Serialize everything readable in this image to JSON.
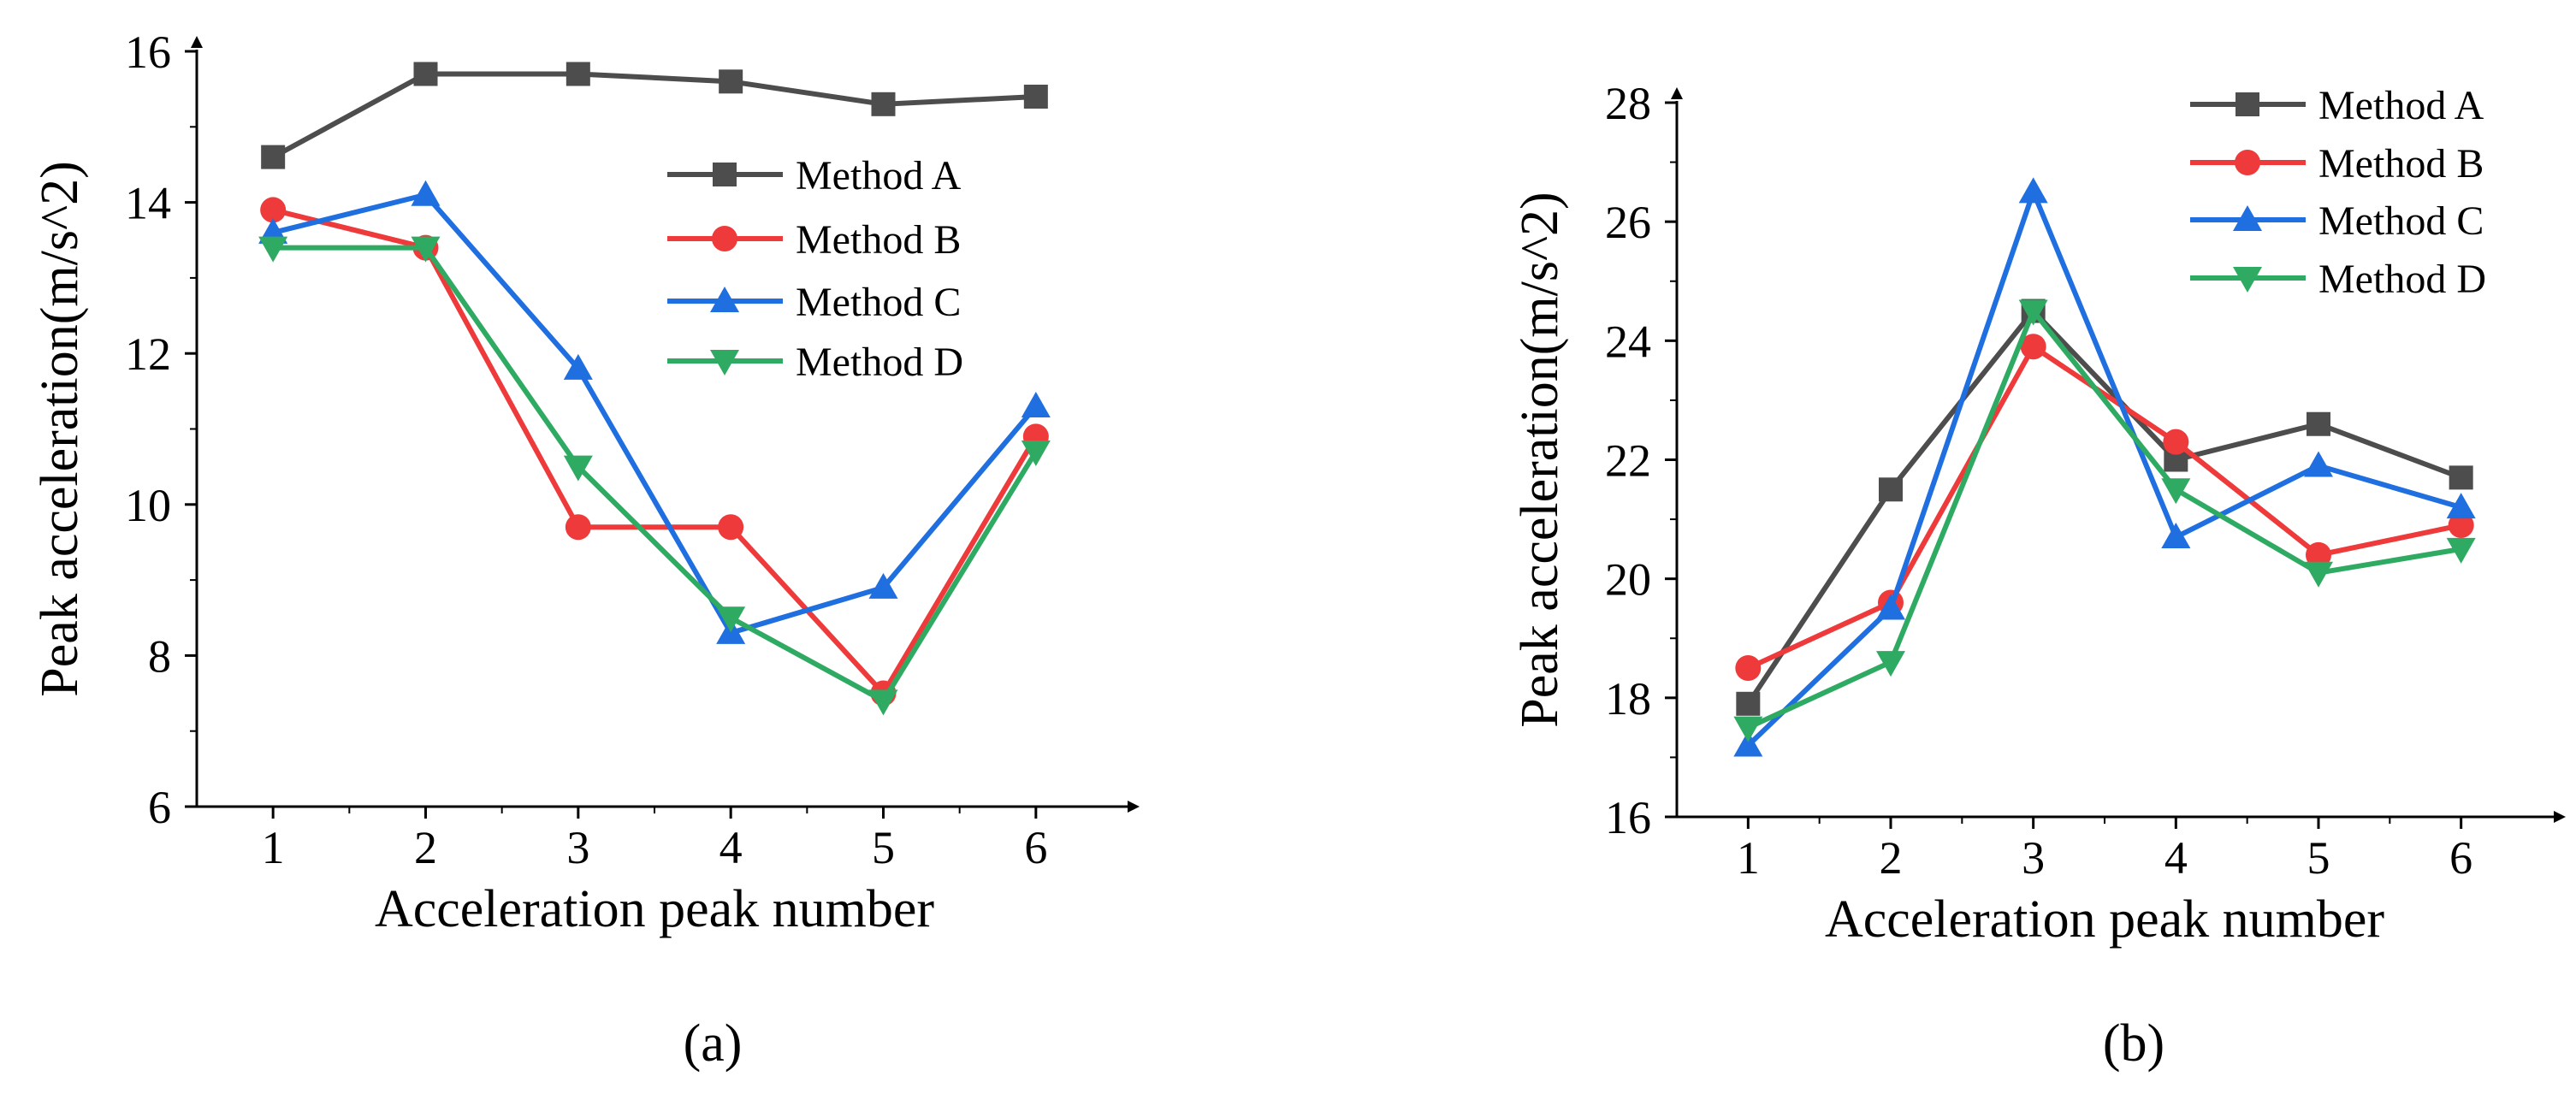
{
  "figure": {
    "panel_a_caption": "(a)",
    "panel_b_caption": "(b)"
  },
  "colors": {
    "Method A": "#4d4d4d",
    "Method B": "#ee3a3a",
    "Method C": "#1f6fe0",
    "Method D": "#2faa62",
    "axis": "#000000"
  },
  "chart_data": [
    {
      "type": "line",
      "panel": "a",
      "title": "",
      "xlabel": "Acceleration peak number",
      "ylabel": "Peak acceleration(m/s^2)",
      "x": [
        1,
        2,
        3,
        4,
        5,
        6
      ],
      "xlim": [
        0.5,
        6.5
      ],
      "ylim": [
        6,
        16
      ],
      "xticks": [
        1,
        2,
        3,
        4,
        5,
        6
      ],
      "yticks": [
        6,
        8,
        10,
        12,
        14,
        16
      ],
      "grid": false,
      "legend_position": "top-right",
      "series": [
        {
          "name": "Method A",
          "marker": "square",
          "values": [
            14.6,
            15.7,
            15.7,
            15.6,
            15.3,
            15.4
          ]
        },
        {
          "name": "Method B",
          "marker": "circle",
          "values": [
            13.9,
            13.4,
            9.7,
            9.7,
            7.5,
            10.9
          ]
        },
        {
          "name": "Method C",
          "marker": "triangle-up",
          "values": [
            13.6,
            14.1,
            11.8,
            8.3,
            8.9,
            11.3
          ]
        },
        {
          "name": "Method D",
          "marker": "triangle-down",
          "values": [
            13.4,
            13.4,
            10.5,
            8.5,
            7.4,
            10.7
          ]
        }
      ]
    },
    {
      "type": "line",
      "panel": "b",
      "title": "",
      "xlabel": "Acceleration peak number",
      "ylabel": "Peak acceleration(m/s^2)",
      "x": [
        1,
        2,
        3,
        4,
        5,
        6
      ],
      "xlim": [
        0.5,
        6.5
      ],
      "ylim": [
        16,
        28
      ],
      "xticks": [
        1,
        2,
        3,
        4,
        5,
        6
      ],
      "yticks": [
        16,
        18,
        20,
        22,
        24,
        26,
        28
      ],
      "grid": false,
      "legend_position": "top-right",
      "series": [
        {
          "name": "Method A",
          "marker": "square",
          "values": [
            17.9,
            21.5,
            24.5,
            22.0,
            22.6,
            21.7
          ]
        },
        {
          "name": "Method B",
          "marker": "circle",
          "values": [
            18.5,
            19.6,
            23.9,
            22.3,
            20.4,
            20.9
          ]
        },
        {
          "name": "Method C",
          "marker": "triangle-up",
          "values": [
            17.2,
            19.5,
            26.5,
            20.7,
            21.9,
            21.2
          ]
        },
        {
          "name": "Method D",
          "marker": "triangle-down",
          "values": [
            17.5,
            18.6,
            24.5,
            21.5,
            20.1,
            20.5
          ]
        }
      ]
    }
  ]
}
